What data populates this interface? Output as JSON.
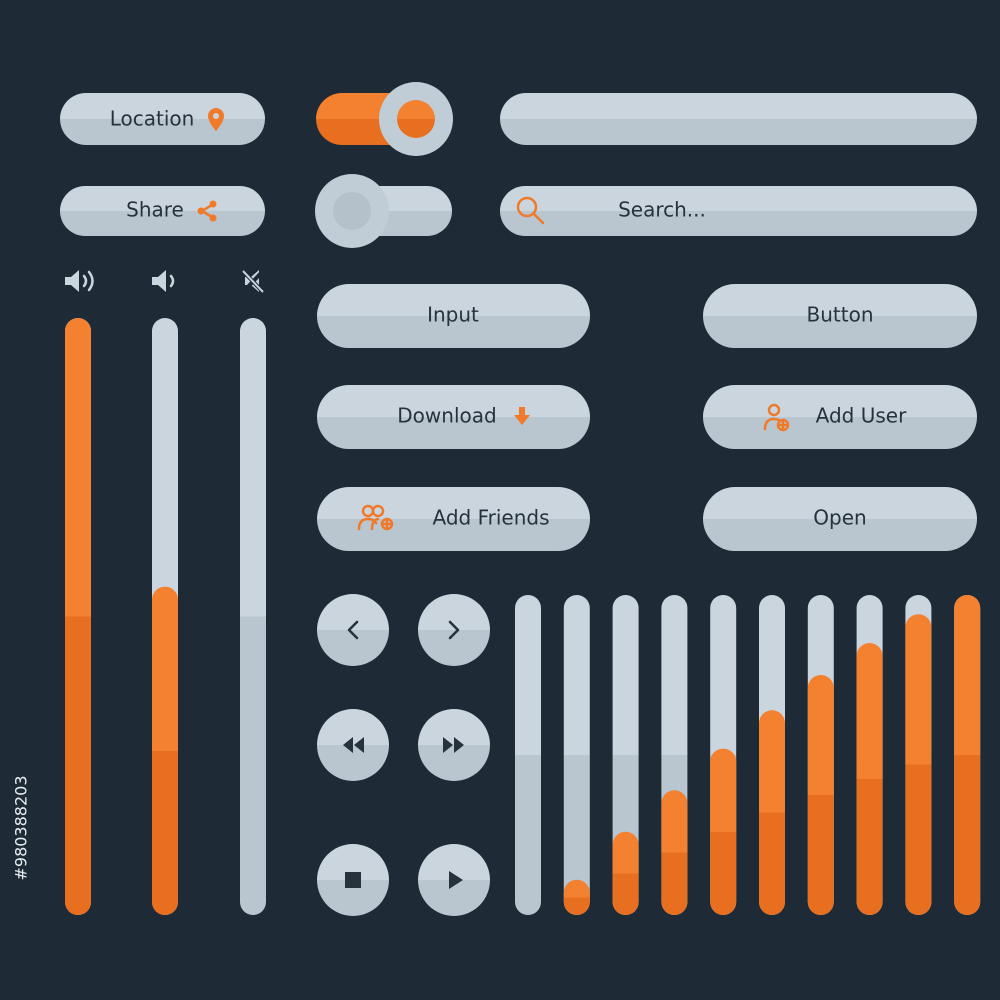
{
  "buttons": {
    "location": "Location",
    "share": "Share",
    "search": "Search...",
    "input": "Input",
    "button": "Button",
    "download": "Download",
    "add_user": "Add User",
    "add_friends": "Add Friends",
    "open": "Open"
  },
  "toggles": [
    true,
    false
  ],
  "volume_sliders": [
    100,
    55,
    0
  ],
  "equalizer": [
    0,
    11,
    26,
    39,
    52,
    64,
    75,
    85,
    94,
    100
  ],
  "stock_id": "#980388203"
}
